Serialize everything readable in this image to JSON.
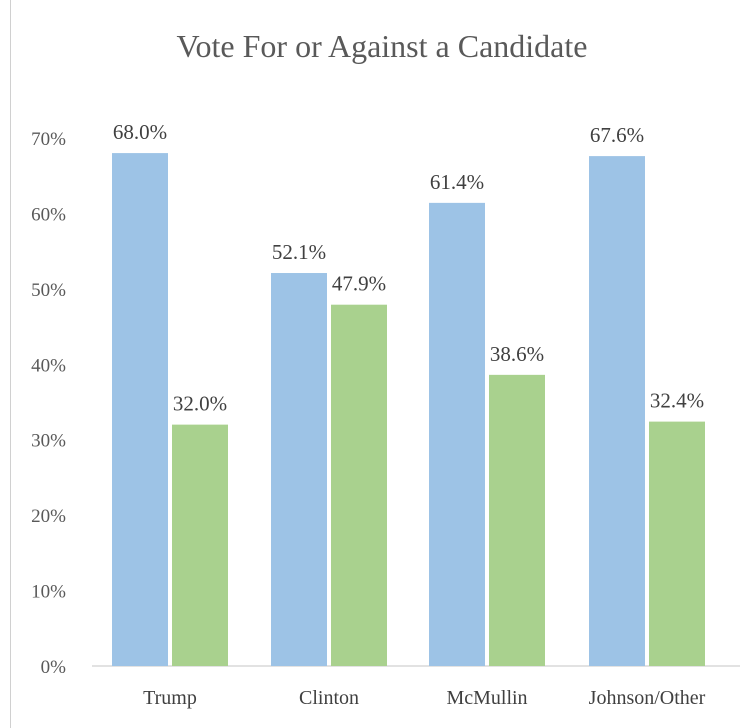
{
  "chart_data": {
    "type": "bar",
    "title": "Vote For or Against a Candidate",
    "xlabel": "",
    "ylabel": "",
    "categories": [
      "Trump",
      "Clinton",
      "McMullin",
      "Johnson/Other"
    ],
    "series": [
      {
        "values": [
          68.0,
          52.1,
          61.4,
          67.6
        ],
        "labels": [
          "68.0%",
          "52.1%",
          "61.4%",
          "67.6%"
        ],
        "color": "#9DC3E6"
      },
      {
        "values": [
          32.0,
          47.9,
          38.6,
          32.4
        ],
        "labels": [
          "32.0%",
          "47.9%",
          "38.6%",
          "32.4%"
        ],
        "color": "#A9D18E"
      }
    ],
    "ylim": [
      0,
      70
    ],
    "yticks": [
      0,
      10,
      20,
      30,
      40,
      50,
      60,
      70
    ],
    "ytick_labels": [
      "0%",
      "10%",
      "20%",
      "30%",
      "40%",
      "50%",
      "60%",
      "70%"
    ],
    "grid": false,
    "legend": "none"
  }
}
